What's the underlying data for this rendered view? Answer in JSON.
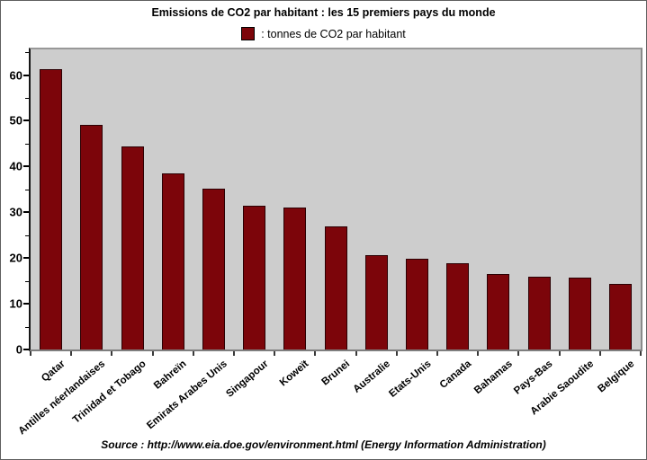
{
  "title": "Emissions de CO2 par habitant : les 15 premiers pays du monde",
  "legend": {
    "label": ": tonnes de CO2 par habitant"
  },
  "source": "Source : http://www.eia.doe.gov/environment.html (Energy Information Administration)",
  "colors": {
    "bar_fill": "#7c050a",
    "bar_border": "#2b0003",
    "plot_background": "#cdcdcd",
    "axis": "#000000"
  },
  "chart_data": {
    "type": "bar",
    "title": "Emissions de CO2 par habitant : les 15 premiers pays du monde",
    "legend_entries": [
      ": tonnes de CO2 par habitant"
    ],
    "legend_position": "top",
    "grid": false,
    "xlabel": "",
    "ylabel": "",
    "ylim": [
      0,
      66
    ],
    "yticks": [
      0,
      10,
      20,
      30,
      40,
      50,
      60
    ],
    "yticks_minor": [
      5,
      15,
      25,
      35,
      45,
      55,
      65
    ],
    "categories": [
      "Qatar",
      "Antilles néerlandaises",
      "Trinidad et Tobago",
      "Bahreïn",
      "Emirats Arabes Unis",
      "Singapour",
      "Koweït",
      "Brunei",
      "Australie",
      "Etats-Unis",
      "Canada",
      "Bahamas",
      "Pays-Bas",
      "Arabie Saoudite",
      "Belgique"
    ],
    "values": [
      61.2,
      49.2,
      44.4,
      38.5,
      35.1,
      31.4,
      31.0,
      27.0,
      20.6,
      19.8,
      18.8,
      16.5,
      16.0,
      15.8,
      14.3
    ]
  }
}
